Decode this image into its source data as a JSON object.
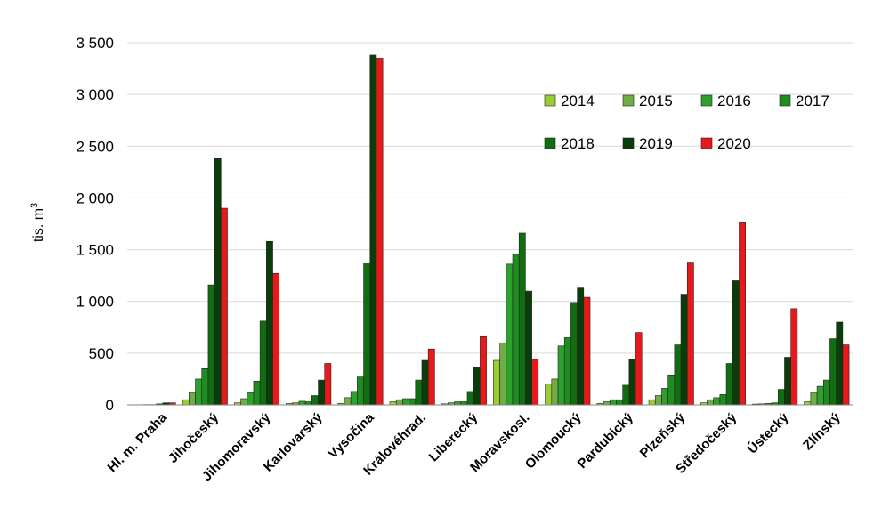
{
  "chart_data": {
    "type": "bar",
    "ylabel": "tis. m",
    "ylabel_sup": "3",
    "ylim": [
      0,
      3500
    ],
    "yticks": [
      0,
      500,
      1000,
      1500,
      2000,
      2500,
      3000,
      3500
    ],
    "ytick_labels": [
      "0",
      "500",
      "1 000",
      "1 500",
      "2 000",
      "2 500",
      "3 000",
      "3 500"
    ],
    "grid": true,
    "legend_position": "upper-right",
    "categories": [
      "Hl. m. Praha",
      "Jihočeský",
      "Jihomoravský",
      "Karlovarský",
      "Vysočina",
      "Královéhrad.",
      "Liberecký",
      "Moravskosl.",
      "Olomoucký",
      "Pardubický",
      "Plzeňský",
      "Středočeský",
      "Ústecký",
      "Zlínský"
    ],
    "series": [
      {
        "name": "2014",
        "color": "#9acd32",
        "values": [
          2,
          50,
          20,
          15,
          15,
          30,
          10,
          430,
          200,
          15,
          50,
          20,
          8,
          30
        ]
      },
      {
        "name": "2015",
        "color": "#70ad47",
        "values": [
          2,
          120,
          60,
          20,
          70,
          50,
          20,
          600,
          250,
          30,
          90,
          50,
          10,
          120
        ]
      },
      {
        "name": "2016",
        "color": "#2ea02e",
        "values": [
          3,
          250,
          120,
          35,
          130,
          60,
          30,
          1360,
          570,
          50,
          160,
          70,
          15,
          180
        ]
      },
      {
        "name": "2017",
        "color": "#1e8c1e",
        "values": [
          3,
          350,
          230,
          30,
          270,
          60,
          30,
          1460,
          650,
          50,
          290,
          100,
          20,
          240
        ]
      },
      {
        "name": "2018",
        "color": "#106e10",
        "values": [
          10,
          1160,
          810,
          90,
          1370,
          240,
          130,
          1660,
          990,
          190,
          580,
          400,
          150,
          640
        ]
      },
      {
        "name": "2019",
        "color": "#0a3d0a",
        "values": [
          20,
          2380,
          1580,
          240,
          3380,
          430,
          360,
          1100,
          1130,
          440,
          1070,
          1200,
          460,
          800
        ]
      },
      {
        "name": "2020",
        "color": "#e8191b",
        "values": [
          20,
          1900,
          1270,
          400,
          3350,
          540,
          660,
          440,
          1040,
          700,
          1380,
          1760,
          930,
          580
        ]
      }
    ]
  }
}
